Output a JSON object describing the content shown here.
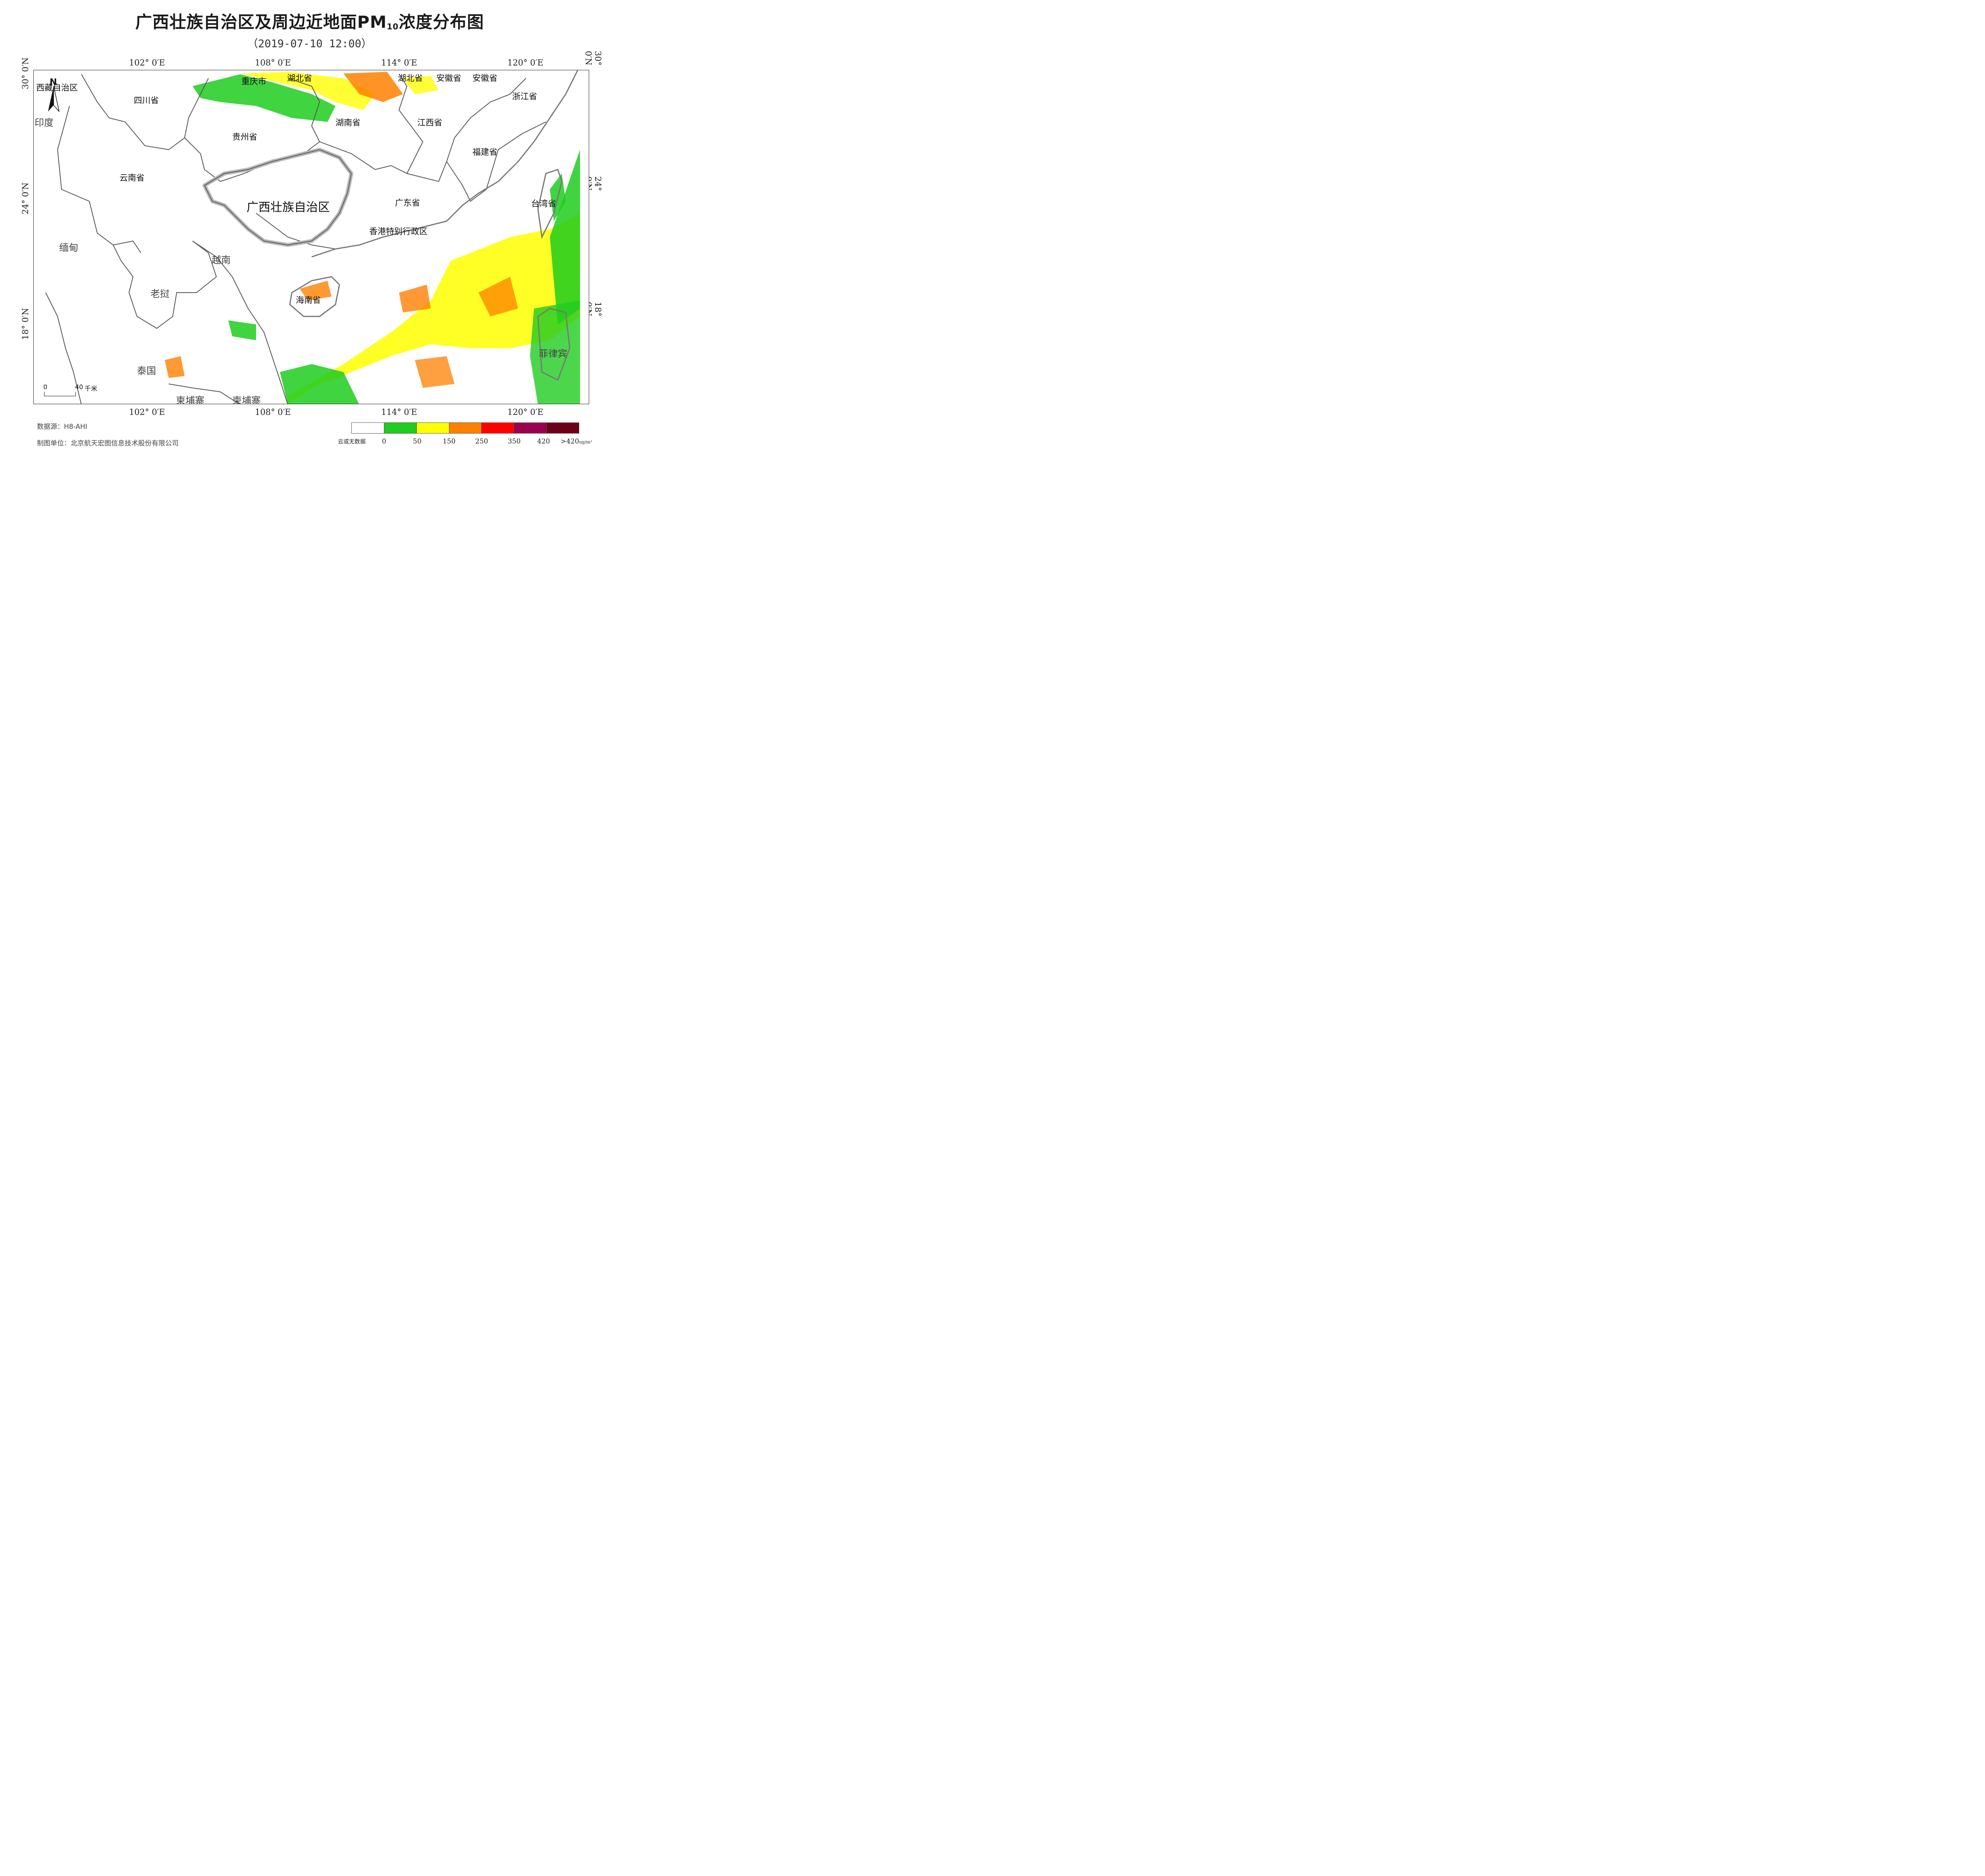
{
  "title": {
    "main": "广西壮族自治区及周边近地面PM",
    "sub": "10",
    "suffix": "浓度分布图"
  },
  "subtitle": "（2019-07-10 12:00）",
  "axes": {
    "lon_labels": [
      "102° 0′E",
      "108° 0′E",
      "114° 0′E",
      "120° 0′E"
    ],
    "lat_labels": [
      "30° 0′N",
      "24° 0′N",
      "18° 0′N"
    ]
  },
  "regions": {
    "xizang": "西藏自治区",
    "sichuan": "四川省",
    "chongqing": "重庆市",
    "hubei1": "湖北省",
    "hubei2": "湖北省",
    "anhui1": "安徽省",
    "anhui2": "安徽省",
    "zhejiang": "浙江省",
    "india": "印度",
    "guizhou": "贵州省",
    "hunan": "湖南省",
    "jiangxi": "江西省",
    "fujian": "福建省",
    "yunnan": "云南省",
    "guangxi": "广西壮族自治区",
    "guangdong": "广东省",
    "taiwan": "台湾省",
    "hongkong": "香港特别行政区",
    "myanmar": "缅甸",
    "vietnam": "越南",
    "laos": "老挝",
    "hainan": "海南省",
    "thailand": "泰国",
    "cambodia1": "柬埔寨",
    "cambodia2": "柬埔寨",
    "philippines": "菲律宾"
  },
  "north_arrow": "N",
  "scale_bar": {
    "start": "0",
    "end": "40",
    "unit": "千米"
  },
  "footer": {
    "source": "数据源：H8-AHI",
    "producer": "制图单位：北京航天宏图信息技术股份有限公司"
  },
  "legend": {
    "colors": [
      "#ffffff",
      "#1fcc1f",
      "#ffff00",
      "#ff8000",
      "#ff0000",
      "#990050",
      "#6b0018"
    ],
    "labels": [
      "云或无数据",
      "0",
      "50",
      "150",
      "250",
      "350",
      "420",
      ">420"
    ],
    "unit": "ug/m³"
  }
}
